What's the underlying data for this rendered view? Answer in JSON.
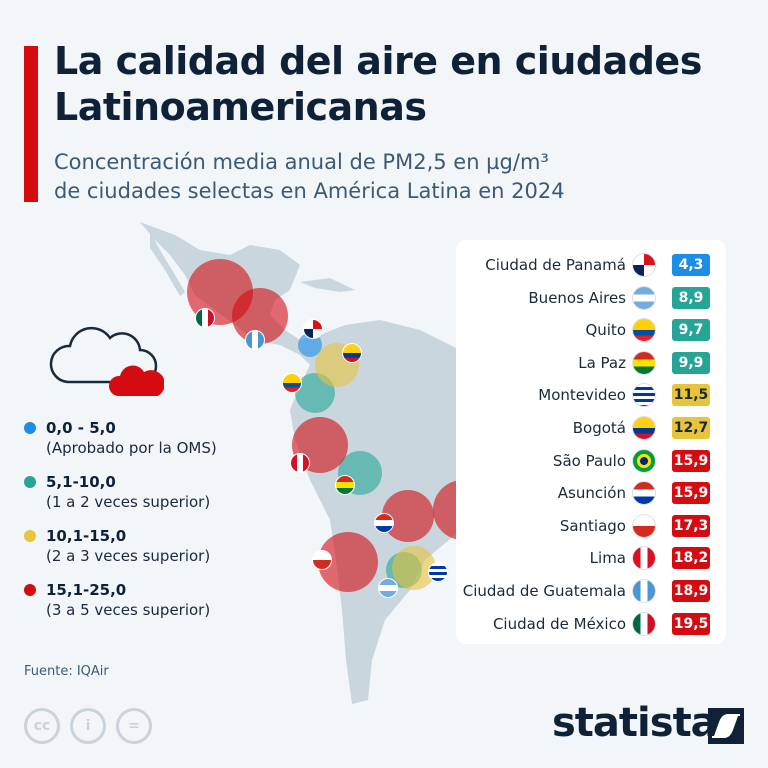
{
  "header": {
    "title_line1": "La calidad del aire en ciudades",
    "title_line2": "Latinoamericanas",
    "subtitle_line1": "Concentración media anual de PM2,5 en µg/m³",
    "subtitle_line2": "de ciudades selectas en América Latina en 2024"
  },
  "colors": {
    "who_approved": "#1c8ee8",
    "x1_2": "#26a596",
    "x2_3": "#e8c33c",
    "x3_5": "#d40c12",
    "map": "#c9d6de"
  },
  "legend": [
    {
      "range": "0,0 - 5,0",
      "desc": "(Aprobado por la OMS)"
    },
    {
      "range": "5,1-10,0",
      "desc": "(1 a 2 veces superior)"
    },
    {
      "range": "10,1-15,0",
      "desc": "(2 a 3 veces superior)"
    },
    {
      "range": "15,1-25,0",
      "desc": "(3 a 5 veces superior)"
    }
  ],
  "chart_data": {
    "type": "table",
    "unit": "µg/m³",
    "rows": [
      {
        "city": "Ciudad de Panamá",
        "country": "panama",
        "value": "4,3",
        "level": 0
      },
      {
        "city": "Buenos Aires",
        "country": "argentina",
        "value": "8,9",
        "level": 1
      },
      {
        "city": "Quito",
        "country": "ecuador",
        "value": "9,7",
        "level": 1
      },
      {
        "city": "La Paz",
        "country": "bolivia",
        "value": "9,9",
        "level": 1
      },
      {
        "city": "Montevideo",
        "country": "uruguay",
        "value": "11,5",
        "level": 2
      },
      {
        "city": "Bogotá",
        "country": "colombia",
        "value": "12,7",
        "level": 2
      },
      {
        "city": "São Paulo",
        "country": "brazil",
        "value": "15,9",
        "level": 3
      },
      {
        "city": "Asunción",
        "country": "paraguay",
        "value": "15,9",
        "level": 3
      },
      {
        "city": "Santiago",
        "country": "chile",
        "value": "17,3",
        "level": 3
      },
      {
        "city": "Lima",
        "country": "peru",
        "value": "18,2",
        "level": 3
      },
      {
        "city": "Ciudad de Guatemala",
        "country": "guatemala",
        "value": "18,9",
        "level": 3
      },
      {
        "city": "Ciudad de México",
        "country": "mexico",
        "value": "19,5",
        "level": 3
      }
    ]
  },
  "footer": {
    "source": "Fuente: IQAir",
    "logo": "statista"
  }
}
